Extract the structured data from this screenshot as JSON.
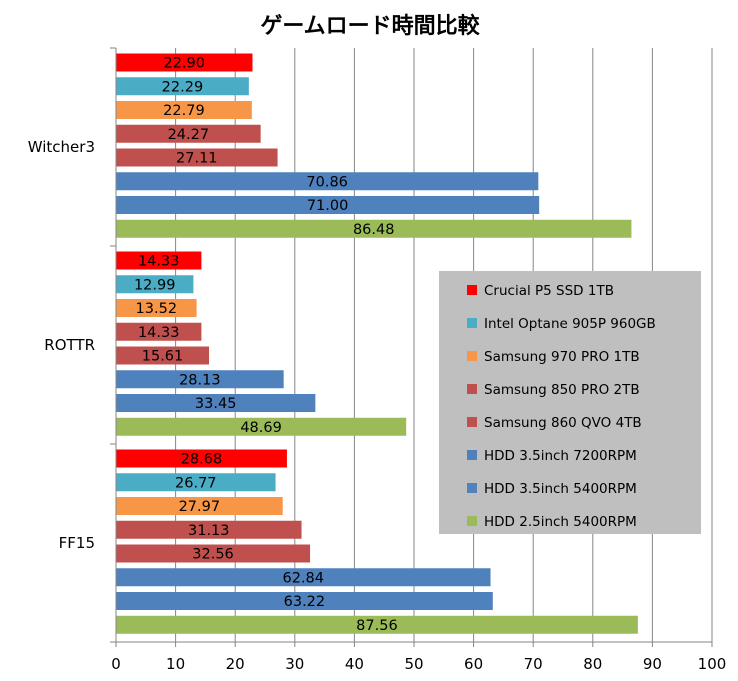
{
  "chart_data": {
    "type": "bar",
    "orientation": "horizontal",
    "title": "ゲームロード時間比較",
    "categories": [
      "Witcher3",
      "ROTTR",
      "FF15"
    ],
    "series": [
      {
        "name": "Crucial P5 SSD 1TB",
        "color": "#ff0000",
        "values": [
          22.9,
          14.33,
          28.68
        ]
      },
      {
        "name": "Intel Optane 905P 960GB",
        "color": "#4bacc6",
        "values": [
          22.29,
          12.99,
          26.77
        ]
      },
      {
        "name": "Samsung 970 PRO 1TB",
        "color": "#f79646",
        "values": [
          22.79,
          13.52,
          27.97
        ]
      },
      {
        "name": "Samsung 850 PRO 2TB",
        "color": "#c0504d",
        "values": [
          24.27,
          14.33,
          31.13
        ]
      },
      {
        "name": "Samsung 860 QVO 4TB",
        "color": "#c0504d",
        "values": [
          27.11,
          15.61,
          32.56
        ]
      },
      {
        "name": "HDD 3.5inch 7200RPM",
        "color": "#4f81bd",
        "values": [
          70.86,
          28.13,
          62.84
        ]
      },
      {
        "name": "HDD 3.5inch 5400RPM",
        "color": "#4f81bd",
        "values": [
          71.0,
          33.45,
          63.22
        ]
      },
      {
        "name": "HDD 2.5inch 5400RPM",
        "color": "#9bbb59",
        "values": [
          86.48,
          48.69,
          87.56
        ]
      }
    ],
    "value_labels": [
      [
        "22.90",
        "22.29",
        "22.79",
        "24.27",
        "27.11",
        "70.86",
        "71.00",
        "86.48"
      ],
      [
        "14.33",
        "12.99",
        "13.52",
        "14.33",
        "15.61",
        "28.13",
        "33.45",
        "48.69"
      ],
      [
        "28.68",
        "26.77",
        "27.97",
        "31.13",
        "32.56",
        "62.84",
        "63.22",
        "87.56"
      ]
    ],
    "xlim": [
      0,
      100
    ],
    "xticks": [
      0,
      10,
      20,
      30,
      40,
      50,
      60,
      70,
      80,
      90,
      100
    ],
    "grid": true,
    "legend_position": "right-middle",
    "legend_background": "#bfbfbf"
  }
}
